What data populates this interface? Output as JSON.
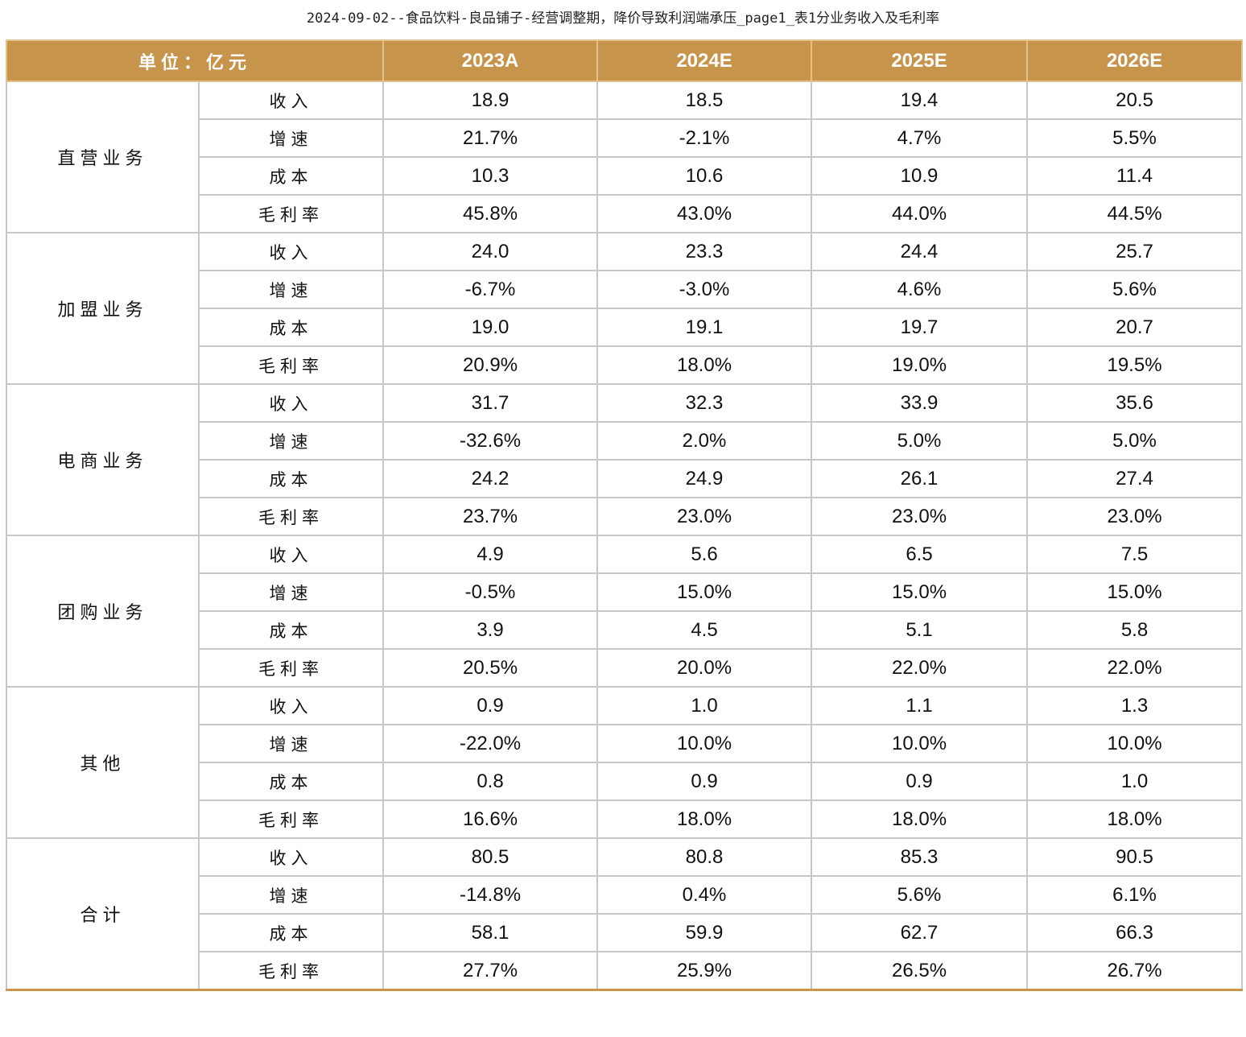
{
  "caption": "2024-09-02--食品饮料-良品铺子-经营调整期，降价导致利润端承压_page1_表1分业务收入及毛利率",
  "table": {
    "header": {
      "unit": "单位：亿元",
      "years": [
        "2023A",
        "2024E",
        "2025E",
        "2026E"
      ]
    },
    "groups": [
      {
        "segment": "直营业务",
        "rows": [
          {
            "metric": "收入",
            "values": [
              "18.9",
              "18.5",
              "19.4",
              "20.5"
            ]
          },
          {
            "metric": "增速",
            "values": [
              "21.7%",
              "-2.1%",
              "4.7%",
              "5.5%"
            ]
          },
          {
            "metric": "成本",
            "values": [
              "10.3",
              "10.6",
              "10.9",
              "11.4"
            ]
          },
          {
            "metric": "毛利率",
            "values": [
              "45.8%",
              "43.0%",
              "44.0%",
              "44.5%"
            ]
          }
        ]
      },
      {
        "segment": "加盟业务",
        "rows": [
          {
            "metric": "收入",
            "values": [
              "24.0",
              "23.3",
              "24.4",
              "25.7"
            ]
          },
          {
            "metric": "增速",
            "values": [
              "-6.7%",
              "-3.0%",
              "4.6%",
              "5.6%"
            ]
          },
          {
            "metric": "成本",
            "values": [
              "19.0",
              "19.1",
              "19.7",
              "20.7"
            ]
          },
          {
            "metric": "毛利率",
            "values": [
              "20.9%",
              "18.0%",
              "19.0%",
              "19.5%"
            ]
          }
        ]
      },
      {
        "segment": "电商业务",
        "rows": [
          {
            "metric": "收入",
            "values": [
              "31.7",
              "32.3",
              "33.9",
              "35.6"
            ]
          },
          {
            "metric": "增速",
            "values": [
              "-32.6%",
              "2.0%",
              "5.0%",
              "5.0%"
            ]
          },
          {
            "metric": "成本",
            "values": [
              "24.2",
              "24.9",
              "26.1",
              "27.4"
            ]
          },
          {
            "metric": "毛利率",
            "values": [
              "23.7%",
              "23.0%",
              "23.0%",
              "23.0%"
            ]
          }
        ]
      },
      {
        "segment": "团购业务",
        "rows": [
          {
            "metric": "收入",
            "values": [
              "4.9",
              "5.6",
              "6.5",
              "7.5"
            ]
          },
          {
            "metric": "增速",
            "values": [
              "-0.5%",
              "15.0%",
              "15.0%",
              "15.0%"
            ]
          },
          {
            "metric": "成本",
            "values": [
              "3.9",
              "4.5",
              "5.1",
              "5.8"
            ]
          },
          {
            "metric": "毛利率",
            "values": [
              "20.5%",
              "20.0%",
              "22.0%",
              "22.0%"
            ]
          }
        ]
      },
      {
        "segment": "其他",
        "rows": [
          {
            "metric": "收入",
            "values": [
              "0.9",
              "1.0",
              "1.1",
              "1.3"
            ]
          },
          {
            "metric": "增速",
            "values": [
              "-22.0%",
              "10.0%",
              "10.0%",
              "10.0%"
            ]
          },
          {
            "metric": "成本",
            "values": [
              "0.8",
              "0.9",
              "0.9",
              "1.0"
            ]
          },
          {
            "metric": "毛利率",
            "values": [
              "16.6%",
              "18.0%",
              "18.0%",
              "18.0%"
            ]
          }
        ]
      },
      {
        "segment": "合计",
        "rows": [
          {
            "metric": "收入",
            "values": [
              "80.5",
              "80.8",
              "85.3",
              "90.5"
            ]
          },
          {
            "metric": "增速",
            "values": [
              "-14.8%",
              "0.4%",
              "5.6%",
              "6.1%"
            ]
          },
          {
            "metric": "成本",
            "values": [
              "58.1",
              "59.9",
              "62.7",
              "66.3"
            ]
          },
          {
            "metric": "毛利率",
            "values": [
              "27.7%",
              "25.9%",
              "26.5%",
              "26.7%"
            ]
          }
        ]
      }
    ]
  }
}
